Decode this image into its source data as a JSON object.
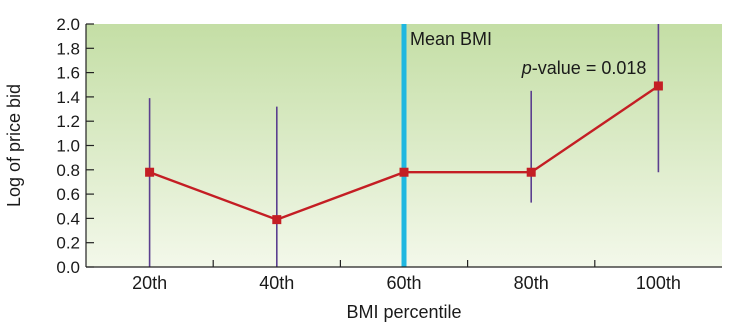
{
  "chart_data": {
    "type": "line",
    "xlabel": "BMI percentile",
    "ylabel": "Log of price bid",
    "ylim": [
      0,
      2.0
    ],
    "y_ticks": [
      "0.0",
      "0.2",
      "0.4",
      "0.6",
      "0.8",
      "1.0",
      "1.2",
      "1.4",
      "1.6",
      "1.8",
      "2.0"
    ],
    "categories": [
      "20th",
      "40th",
      "60th",
      "80th",
      "100th"
    ],
    "series": [
      {
        "values": [
          0.78,
          0.39,
          0.78,
          0.78,
          1.49
        ],
        "error_low": [
          0.0,
          0.0,
          0.25,
          0.53,
          0.78
        ],
        "error_high": [
          1.39,
          1.32,
          1.42,
          1.45,
          2.0
        ],
        "color": "#c41e24"
      }
    ],
    "reference_line": {
      "label": "Mean BMI",
      "position_between": [
        "40th",
        "60th"
      ],
      "x_value": 2.5,
      "color": "#1fb7e0"
    },
    "annotation": {
      "italic_part": "p",
      "text": "-value = 0.018"
    },
    "error_bar_color": "#5b3f8f",
    "background_gradient": [
      "#c4dea5",
      "#f3f8ea"
    ],
    "grid": false,
    "legend": "none"
  }
}
